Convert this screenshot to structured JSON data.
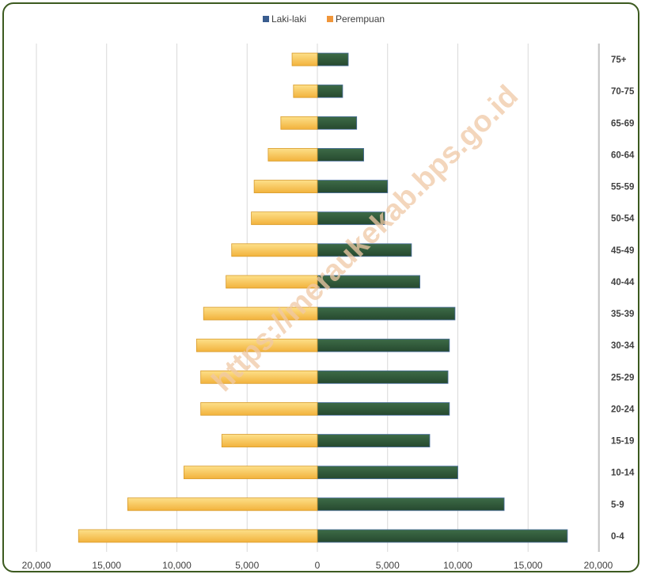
{
  "watermark": "https://meraukekab.bps.go.id",
  "chart_data": {
    "type": "bar",
    "orientation": "horizontal",
    "categories": [
      "0-4",
      "5-9",
      "10-14",
      "15-19",
      "20-24",
      "25-29",
      "30-34",
      "35-39",
      "40-44",
      "45-49",
      "50-54",
      "55-59",
      "60-64",
      "65-69",
      "70-75",
      "75+"
    ],
    "series": [
      {
        "name": "Laki-laki",
        "color": "#2e5a3b",
        "values": [
          17800,
          13300,
          10000,
          8000,
          9400,
          9300,
          9400,
          9800,
          7300,
          6700,
          4800,
          5000,
          3300,
          2800,
          1800,
          2200
        ]
      },
      {
        "name": "Perempuan",
        "color": "#f2b23c",
        "values": [
          -17000,
          -13500,
          -9500,
          -6800,
          -8300,
          -8300,
          -8600,
          -8100,
          -6500,
          -6100,
          -4700,
          -4500,
          -3500,
          -2600,
          -1700,
          -1800
        ]
      }
    ],
    "x_ticks": [
      "20,000",
      "15,000",
      "10,000",
      "5,000",
      "0",
      "5,000",
      "10,000",
      "15,000",
      "20,000"
    ],
    "xlim": [
      -20000,
      20000
    ],
    "legend_position": "top",
    "grid": true
  }
}
